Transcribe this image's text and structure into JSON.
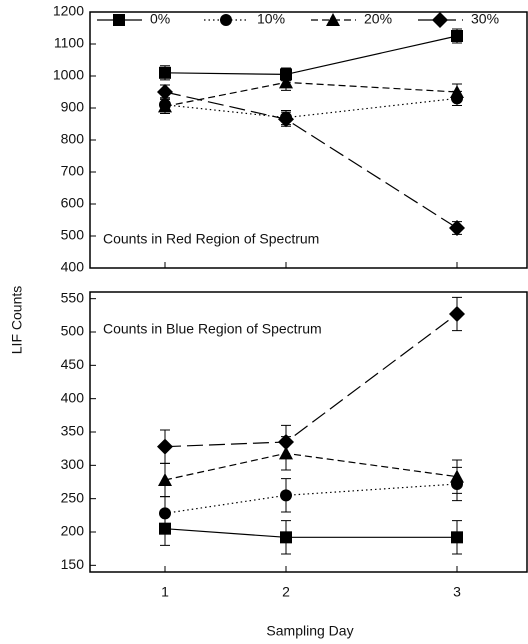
{
  "chart_data": [
    {
      "type": "line",
      "ylabel": "LIF Counts",
      "annotation": "Counts in Red Region of Spectrum",
      "categories": [
        "1",
        "2",
        "3"
      ],
      "ylim": [
        400,
        1200
      ],
      "yticks": [
        400,
        500,
        600,
        700,
        800,
        900,
        1000,
        1100,
        1200
      ],
      "legend": "top",
      "series": [
        {
          "name": "0%",
          "color": "#000000",
          "marker": "square",
          "dash": "solid",
          "values": [
            1010,
            1005,
            1125
          ],
          "errors": [
            22,
            20,
            22
          ]
        },
        {
          "name": "10%",
          "color": "#000000",
          "marker": "circle",
          "dash": "dotted",
          "values": [
            910,
            870,
            930
          ],
          "errors": [
            22,
            22,
            22
          ]
        },
        {
          "name": "20%",
          "color": "#000000",
          "marker": "triangle",
          "dash": "short",
          "values": [
            905,
            980,
            950
          ],
          "errors": [
            22,
            25,
            25
          ]
        },
        {
          "name": "30%",
          "color": "#000000",
          "marker": "diamond",
          "dash": "long",
          "values": [
            950,
            865,
            525
          ],
          "errors": [
            22,
            22,
            20
          ]
        }
      ]
    },
    {
      "type": "line",
      "xlabel": "Sampling Day",
      "annotation": "Counts in Blue Region of Spectrum",
      "categories": [
        "1",
        "2",
        "3"
      ],
      "ylim": [
        140,
        560
      ],
      "yticks": [
        150,
        200,
        250,
        300,
        350,
        400,
        450,
        500,
        550
      ],
      "series": [
        {
          "name": "0%",
          "color": "#000000",
          "marker": "square",
          "dash": "solid",
          "values": [
            205,
            192,
            192
          ],
          "errors": [
            25,
            25,
            25
          ]
        },
        {
          "name": "10%",
          "color": "#000000",
          "marker": "circle",
          "dash": "dotted",
          "values": [
            228,
            255,
            272
          ],
          "errors": [
            25,
            25,
            25
          ]
        },
        {
          "name": "20%",
          "color": "#000000",
          "marker": "triangle",
          "dash": "short",
          "values": [
            278,
            318,
            283
          ],
          "errors": [
            25,
            25,
            25
          ]
        },
        {
          "name": "30%",
          "color": "#000000",
          "marker": "diamond",
          "dash": "long",
          "values": [
            328,
            335,
            527
          ],
          "errors": [
            25,
            25,
            25
          ]
        }
      ]
    }
  ]
}
